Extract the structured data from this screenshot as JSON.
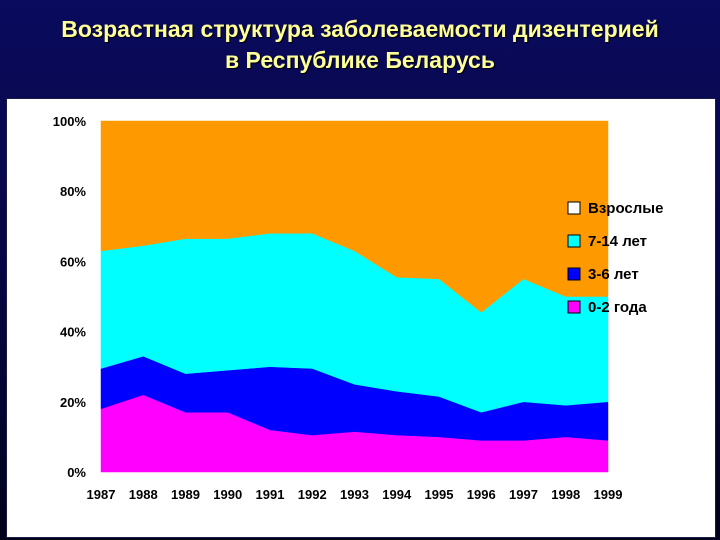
{
  "title": {
    "line1": "Возрастная структура заболеваемости дизентерией",
    "line2": "в Республике Беларусь"
  },
  "chart_data": {
    "type": "area",
    "stacked": true,
    "percent": true,
    "categories": [
      "1987",
      "1988",
      "1989",
      "1990",
      "1991",
      "1992",
      "1993",
      "1994",
      "1995",
      "1996",
      "1997",
      "1998",
      "1999"
    ],
    "y_ticks": [
      "0%",
      "20%",
      "40%",
      "60%",
      "80%",
      "100%"
    ],
    "ylim": [
      0,
      100
    ],
    "grid": false,
    "legend_position": "right",
    "series": [
      {
        "name": "0-2 года",
        "color": "#ff00ff",
        "values": [
          18,
          22,
          17,
          17,
          12,
          10.5,
          11.5,
          10.5,
          10,
          9,
          9,
          10,
          9
        ]
      },
      {
        "name": "3-6 лет",
        "color": "#0000ff",
        "values": [
          11.5,
          11,
          11,
          12,
          18,
          19,
          13.5,
          12.5,
          11.5,
          8,
          11,
          9,
          11
        ]
      },
      {
        "name": "7-14 лет",
        "color": "#00ffff",
        "values": [
          33.5,
          31.5,
          38.5,
          37.5,
          38,
          38.5,
          38,
          32.5,
          33.5,
          28.5,
          35,
          31,
          30
        ]
      },
      {
        "name": "Взрослые",
        "color": "#ff9900",
        "values": [
          37,
          35.5,
          33.5,
          33.5,
          32,
          32,
          37,
          44.5,
          45,
          54.5,
          45,
          50,
          50
        ]
      }
    ],
    "legend": [
      {
        "name": "Взрослые",
        "color": "#ff9900",
        "swatch": "#ffffff"
      },
      {
        "name": "7-14 лет",
        "color": "#00ffff",
        "swatch": "#00ffff"
      },
      {
        "name": "3-6 лет",
        "color": "#0000ff",
        "swatch": "#0000ff"
      },
      {
        "name": "0-2 года",
        "color": "#ff00ff",
        "swatch": "#ff00ff"
      }
    ]
  }
}
